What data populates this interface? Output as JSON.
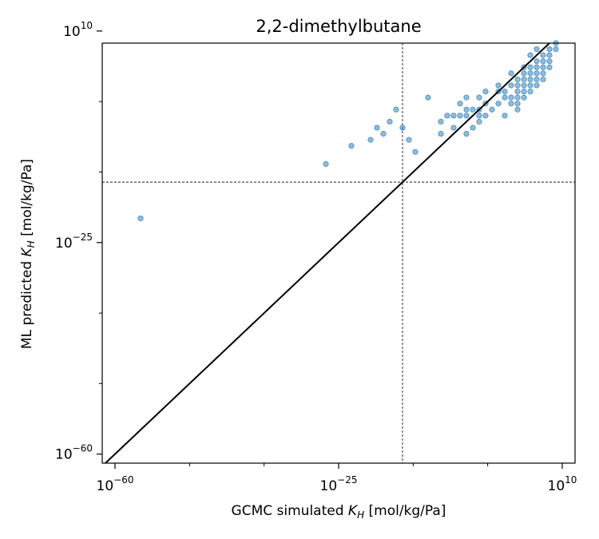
{
  "chart_data": {
    "type": "scatter",
    "title": "2,2-dimethylbutane",
    "xlabel": {
      "prefix": "GCMC simulated ",
      "var": "K",
      "sub": "H",
      "suffix": " [mol/kg/Pa]"
    },
    "ylabel": {
      "prefix": "ML predicted ",
      "var": "K",
      "sub": "H",
      "suffix": " [mol/kg/Pa]"
    },
    "scale": "log10",
    "xlim_exp": [
      -62,
      12
    ],
    "ylim_exp": [
      -61.5,
      8
    ],
    "xticks": [
      {
        "base": "10",
        "exp": "−60",
        "value": -60
      },
      {
        "base": "10",
        "exp": "−25",
        "value": -25
      },
      {
        "base": "10",
        "exp": "10",
        "value": 10
      }
    ],
    "yticks": [
      {
        "base": "10",
        "exp": "10",
        "value": 10
      },
      {
        "base": "10",
        "exp": "−25",
        "value": -25
      },
      {
        "base": "10",
        "exp": "−60",
        "value": -60
      }
    ],
    "minor_ticks_exp": [
      -48.33,
      -36.67,
      -13.33,
      -1.67
    ],
    "reference_lines": {
      "diagonal": "y=x",
      "vline_exp": -15,
      "hline_exp": -15
    },
    "colors": {
      "points": "#1f77b4",
      "diagonal": "#000000",
      "guides": "#000000"
    },
    "points_log10": [
      [
        -56,
        -21
      ],
      [
        -27,
        -12
      ],
      [
        -23,
        -9
      ],
      [
        -20,
        -8
      ],
      [
        -19,
        -6
      ],
      [
        -18,
        -7
      ],
      [
        -17,
        -5
      ],
      [
        -16,
        -3
      ],
      [
        -15,
        -6
      ],
      [
        -14,
        -8
      ],
      [
        -13,
        -10
      ],
      [
        -11,
        -1
      ],
      [
        -9,
        -7
      ],
      [
        -9,
        -5
      ],
      [
        -8,
        -4
      ],
      [
        -7,
        -4
      ],
      [
        -7,
        -6
      ],
      [
        -6,
        -2
      ],
      [
        -6,
        -4
      ],
      [
        -5,
        -3
      ],
      [
        -5,
        -7
      ],
      [
        -5,
        -1
      ],
      [
        -5,
        -4
      ],
      [
        -4,
        -6
      ],
      [
        -4,
        -3
      ],
      [
        -3,
        -5
      ],
      [
        -3,
        -3
      ],
      [
        -3,
        -4
      ],
      [
        -3,
        -1
      ],
      [
        -2,
        -2
      ],
      [
        -2,
        -4
      ],
      [
        -2,
        0
      ],
      [
        -1,
        -3
      ],
      [
        0,
        -2
      ],
      [
        0,
        0
      ],
      [
        0,
        1
      ],
      [
        1,
        -4
      ],
      [
        1,
        -1
      ],
      [
        1,
        0
      ],
      [
        2,
        -2
      ],
      [
        2,
        1
      ],
      [
        2,
        -1
      ],
      [
        2,
        3
      ],
      [
        3,
        -1
      ],
      [
        3,
        0
      ],
      [
        3,
        1
      ],
      [
        3,
        -3
      ],
      [
        3,
        -2
      ],
      [
        3,
        2
      ],
      [
        4,
        0
      ],
      [
        4,
        1
      ],
      [
        4,
        2
      ],
      [
        4,
        -1
      ],
      [
        4,
        3
      ],
      [
        4,
        4
      ],
      [
        5,
        1
      ],
      [
        5,
        2
      ],
      [
        5,
        3
      ],
      [
        5,
        4
      ],
      [
        5,
        6
      ],
      [
        5,
        0
      ],
      [
        6,
        2
      ],
      [
        6,
        3
      ],
      [
        6,
        4
      ],
      [
        6,
        5
      ],
      [
        6,
        1
      ],
      [
        6,
        7
      ],
      [
        7,
        3
      ],
      [
        7,
        4
      ],
      [
        7,
        5
      ],
      [
        7,
        6
      ],
      [
        7,
        2
      ],
      [
        8,
        5
      ],
      [
        8,
        6
      ],
      [
        8,
        4
      ],
      [
        8,
        7
      ],
      [
        9,
        7
      ],
      [
        9,
        8
      ]
    ]
  }
}
